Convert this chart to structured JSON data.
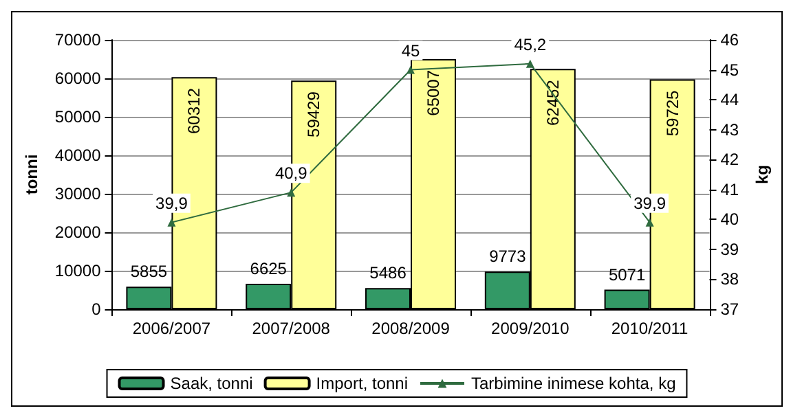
{
  "chart_data": {
    "type": "bar",
    "ylabel": "tonni",
    "y2label": "kg",
    "categories": [
      "2006/2007",
      "2007/2008",
      "2008/2009",
      "2009/2010",
      "2010/2011"
    ],
    "series": [
      {
        "name": "Saak, tonni",
        "color": "#339966",
        "values": [
          5855,
          6625,
          5486,
          9773,
          5071
        ],
        "value_labels": [
          "5855",
          "6625",
          "5486",
          "9773",
          "5071"
        ]
      },
      {
        "name": "Import, tonni",
        "color": "#ffff99",
        "values": [
          60312,
          59429,
          65007,
          62452,
          59725
        ],
        "value_labels": [
          "60312",
          "59429",
          "65007",
          "62452",
          "59725"
        ]
      },
      {
        "name": "Tarbimine inimese kohta, kg",
        "type": "line",
        "axis": "y2",
        "color": "#2f6b3f",
        "values": [
          39.9,
          40.9,
          45,
          45.2,
          39.9
        ],
        "value_labels": [
          "39,9",
          "40,9",
          "45",
          "45,2",
          "39,9"
        ]
      }
    ],
    "ylim": [
      0,
      70000
    ],
    "yticks": [
      0,
      10000,
      20000,
      30000,
      40000,
      50000,
      60000,
      70000
    ],
    "y2lim": [
      37,
      46
    ],
    "y2ticks": [
      37,
      38,
      39,
      40,
      41,
      42,
      43,
      44,
      45,
      46
    ],
    "grid": "y",
    "legend": "bottom",
    "marker": "triangle"
  }
}
